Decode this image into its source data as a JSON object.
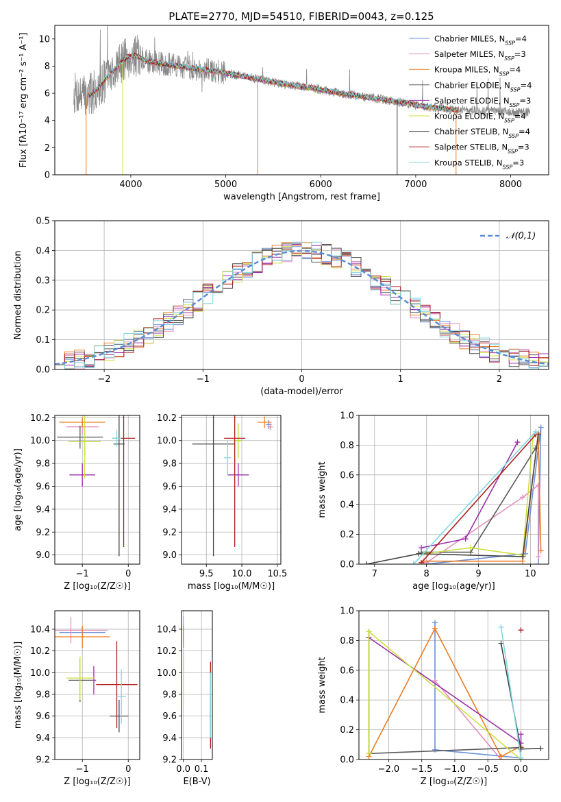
{
  "figure": {
    "title": "PLATE=2770, MJD=54510, FIBERID=0043, z=0.125"
  },
  "series_colors": [
    "#6a8fd8",
    "#e38fc0",
    "#ea7d22",
    "#595959",
    "#9a2fa8",
    "#cde040",
    "#454545",
    "#b01c1c",
    "#82d6df"
  ],
  "chart_data": [
    {
      "id": "spectrum",
      "type": "line",
      "xlabel": "wavelength [Angstrom, rest frame]",
      "ylabel": "Flux [fλ10⁻¹⁷ erg cm⁻² s⁻¹ A⁻¹]",
      "xlim": [
        3200,
        8400
      ],
      "ylim": [
        0,
        11
      ],
      "xticks": [
        4000,
        5000,
        6000,
        7000,
        8000
      ],
      "yticks": [
        0,
        2,
        4,
        6,
        8,
        10
      ],
      "grid": false,
      "legend_position": "top-right",
      "legend": [
        "Chabrier MILES, N_SSP=4",
        "Salpeter MILES, N_SSP=3",
        "Kroupa MILES, N_SSP=4",
        "Chabrier ELODIE, N_SSP=4",
        "Salpeter ELODIE, N_SSP=3",
        "Kroupa ELODIE, N_SSP=4",
        "Chabrier STELIB, N_SSP=4",
        "Salpeter STELIB, N_SSP=3",
        "Kroupa STELIB, N_SSP=3"
      ],
      "continuum": {
        "wavelength": [
          3400,
          3550,
          3650,
          3750,
          3850,
          3950,
          4050,
          4150,
          4300,
          4500,
          4700,
          5000,
          5300,
          5600,
          5900,
          6200,
          6500,
          6800,
          7100,
          7400,
          7700,
          8000,
          8200
        ],
        "flux": [
          6.0,
          5.8,
          6.3,
          7.2,
          7.9,
          8.6,
          8.8,
          8.4,
          8.2,
          8.0,
          7.8,
          7.5,
          7.1,
          6.7,
          6.4,
          6.0,
          5.7,
          5.4,
          5.0,
          4.8,
          4.7,
          4.6,
          4.6
        ]
      },
      "model_wavelength_range": [
        3550,
        7450
      ]
    },
    {
      "id": "residuals",
      "type": "histogram",
      "xlabel": "(data-model)/error",
      "ylabel": "Normed distribution",
      "xlim": [
        -2.5,
        2.5
      ],
      "ylim": [
        0,
        0.5
      ],
      "xticks": [
        -2,
        -1,
        0,
        1,
        2
      ],
      "yticks": [
        0.0,
        0.1,
        0.2,
        0.3,
        0.4,
        0.5
      ],
      "grid": true,
      "legend_position": "top-right",
      "legend": [
        "𝒩(0,1)"
      ],
      "bin_width": 0.1,
      "bin_start": -2.5
    },
    {
      "id": "age-Z",
      "type": "scatter",
      "xlabel": "Z [log₁₀(Z/Z☉)]",
      "ylabel": "age  [log₁₀(age/yr)]",
      "xlim": [
        -1.6,
        0.25
      ],
      "ylim": [
        8.92,
        10.22
      ],
      "xticks": [
        -1,
        0
      ],
      "yticks": [
        9.0,
        9.2,
        9.4,
        9.6,
        9.8,
        10.0,
        10.2
      ],
      "grid": true,
      "points": [
        {
          "x": -0.95,
          "y": 9.99,
          "xerr": 0.35,
          "yerr": 0.12,
          "color": "#6a8fd8"
        },
        {
          "x": -1.0,
          "y": 10.12,
          "xerr": 0.35,
          "yerr": 0.07,
          "color": "#e38fc0"
        },
        {
          "x": -1.0,
          "y": 10.16,
          "xerr": 0.5,
          "yerr": 0.04,
          "color": "#ea7d22"
        },
        {
          "x": -1.05,
          "y": 10.03,
          "xerr": 0.5,
          "yerr": 0.1,
          "color": "#595959"
        },
        {
          "x": -1.0,
          "y": 9.7,
          "xerr": 0.28,
          "yerr": 0.1,
          "color": "#9a2fa8"
        },
        {
          "x": -0.95,
          "y": 9.99,
          "xerr": 0.35,
          "yerr": 0.32,
          "color": "#cde040"
        },
        {
          "x": -0.2,
          "y": 9.97,
          "xerr": 0.12,
          "yerr": 0.98,
          "color": "#454545"
        },
        {
          "x": -0.1,
          "y": 10.02,
          "xerr": 0.25,
          "yerr": 0.95,
          "color": "#b01c1c"
        },
        {
          "x": -0.25,
          "y": 10.02,
          "xerr": 0.1,
          "yerr": 0.07,
          "color": "#82d6df"
        }
      ]
    },
    {
      "id": "age-mass",
      "type": "scatter",
      "xlabel": "mass [log₁₀(M/M☉)]",
      "ylabel": "",
      "xlim": [
        9.15,
        10.55
      ],
      "ylim": [
        8.92,
        10.22
      ],
      "xticks": [
        9.5,
        10.0,
        10.5
      ],
      "yticks": [
        9.0,
        9.2,
        9.4,
        9.6,
        9.8,
        10.0,
        10.2
      ],
      "grid": true,
      "points": [
        {
          "x": 10.38,
          "y": 10.14,
          "xerr": 0.04,
          "yerr": 0.04,
          "color": "#6a8fd8"
        },
        {
          "x": 10.4,
          "y": 10.12,
          "xerr": 0.04,
          "yerr": 0.03,
          "color": "#e38fc0"
        },
        {
          "x": 10.32,
          "y": 10.16,
          "xerr": 0.1,
          "yerr": 0.05,
          "color": "#ea7d22"
        },
        {
          "x": 9.95,
          "y": 10.0,
          "xerr": 0.05,
          "yerr": 0.15,
          "color": "#595959"
        },
        {
          "x": 9.95,
          "y": 9.7,
          "xerr": 0.15,
          "yerr": 0.1,
          "color": "#9a2fa8"
        },
        {
          "x": 9.95,
          "y": 10.0,
          "xerr": 0.05,
          "yerr": 0.15,
          "color": "#cde040"
        },
        {
          "x": 9.6,
          "y": 9.97,
          "xerr": 0.3,
          "yerr": 0.98,
          "color": "#454545"
        },
        {
          "x": 9.9,
          "y": 10.02,
          "xerr": 0.15,
          "yerr": 0.95,
          "color": "#b01c1c"
        },
        {
          "x": 9.8,
          "y": 9.85,
          "xerr": 0.05,
          "yerr": 0.15,
          "color": "#82d6df"
        }
      ]
    },
    {
      "id": "weight-age",
      "type": "line",
      "xlabel": "age  [log₁₀(age/yr)]",
      "ylabel": "mass weight",
      "xlim": [
        6.7,
        10.35
      ],
      "ylim": [
        0,
        1.0
      ],
      "xticks": [
        7,
        8,
        9,
        10
      ],
      "yticks": [
        0.0,
        0.2,
        0.4,
        0.6,
        0.8,
        1.0
      ],
      "grid": true,
      "series": [
        {
          "color": "#6a8fd8",
          "x": [
            8.0,
            9.9,
            10.2,
            10.15
          ],
          "y": [
            0.0,
            0.07,
            0.92,
            0.0
          ]
        },
        {
          "color": "#e38fc0",
          "x": [
            8.0,
            9.85,
            10.15,
            10.15
          ],
          "y": [
            0.01,
            0.45,
            0.53,
            0.05
          ]
        },
        {
          "color": "#ea7d22",
          "x": [
            7.95,
            9.85,
            10.15,
            10.2
          ],
          "y": [
            0.02,
            0.02,
            0.88,
            0.09
          ]
        },
        {
          "color": "#595959",
          "x": [
            7.9,
            8.85,
            10.1
          ],
          "y": [
            0.08,
            0.08,
            0.78
          ]
        },
        {
          "color": "#9a2fa8",
          "x": [
            7.9,
            8.75,
            9.75
          ],
          "y": [
            0.11,
            0.17,
            0.82
          ]
        },
        {
          "color": "#cde040",
          "x": [
            7.95,
            8.85,
            9.85,
            10.05
          ],
          "y": [
            0.07,
            0.11,
            0.06,
            0.86
          ]
        },
        {
          "color": "#454545",
          "x": [
            6.85,
            7.85,
            9.85,
            10.15
          ],
          "y": [
            0.0,
            0.07,
            0.05,
            0.87
          ]
        },
        {
          "color": "#b01c1c",
          "x": [
            7.9,
            10.1
          ],
          "y": [
            0.01,
            0.87
          ]
        },
        {
          "color": "#82d6df",
          "x": [
            7.75,
            10.1
          ],
          "y": [
            0.0,
            0.89
          ]
        }
      ]
    },
    {
      "id": "mass-Z",
      "type": "scatter",
      "xlabel": "Z [log₁₀(Z/Z☉)]",
      "ylabel": "mass [log₁₀(M/M☉)]",
      "xlim": [
        -1.6,
        0.25
      ],
      "ylim": [
        9.2,
        10.57
      ],
      "xticks": [
        -1,
        0
      ],
      "yticks": [
        9.2,
        9.4,
        9.6,
        9.8,
        10.0,
        10.2,
        10.4
      ],
      "grid": true,
      "points": [
        {
          "x": -1.0,
          "y": 10.37,
          "xerr": 0.5,
          "yerr": 0.04,
          "color": "#6a8fd8"
        },
        {
          "x": -1.25,
          "y": 10.39,
          "xerr": 0.8,
          "yerr": 0.12,
          "color": "#e38fc0"
        },
        {
          "x": -1.0,
          "y": 10.33,
          "xerr": 0.6,
          "yerr": 0.1,
          "color": "#ea7d22"
        },
        {
          "x": -1.05,
          "y": 9.93,
          "xerr": 0.25,
          "yerr": 0.2,
          "color": "#595959"
        },
        {
          "x": -0.75,
          "y": 9.93,
          "xerr": 0.05,
          "yerr": 0.13,
          "color": "#9a2fa8"
        },
        {
          "x": -1.05,
          "y": 9.95,
          "xerr": 0.3,
          "yerr": 0.2,
          "color": "#cde040"
        },
        {
          "x": -0.2,
          "y": 9.6,
          "xerr": 0.2,
          "yerr": 0.15,
          "color": "#454545"
        },
        {
          "x": -0.25,
          "y": 9.89,
          "xerr": 0.45,
          "yerr": 0.4,
          "color": "#b01c1c"
        },
        {
          "x": -0.15,
          "y": 9.78,
          "xerr": 0.1,
          "yerr": 0.25,
          "color": "#82d6df"
        }
      ]
    },
    {
      "id": "mass-EBV",
      "type": "scatter",
      "xlabel": "E(B-V)",
      "ylabel": "",
      "xlim": [
        -0.01,
        0.16
      ],
      "ylim": [
        9.2,
        10.57
      ],
      "xticks": [
        0.0,
        0.1
      ],
      "yticks": [
        9.2,
        9.4,
        9.6,
        9.8,
        10.0,
        10.2,
        10.4
      ],
      "grid": true,
      "points": [
        {
          "x": 0.0,
          "y": 10.38,
          "xerr": 0.0,
          "yerr": 0.08,
          "color": "#6a8fd8"
        },
        {
          "x": 0.0,
          "y": 10.4,
          "xerr": 0.0,
          "yerr": 0.12,
          "color": "#e38fc0"
        },
        {
          "x": 0.0,
          "y": 10.33,
          "xerr": 0.0,
          "yerr": 0.1,
          "color": "#ea7d22"
        },
        {
          "x": 0.0,
          "y": 10.1,
          "xerr": 0.0,
          "yerr": 0.08,
          "color": "#9a2fa8"
        },
        {
          "x": 0.0,
          "y": 9.95,
          "xerr": 0.0,
          "yerr": 0.25,
          "color": "#cde040"
        },
        {
          "x": 0.15,
          "y": 9.6,
          "xerr": 0.0,
          "yerr": 0.15,
          "color": "#454545"
        },
        {
          "x": 0.15,
          "y": 9.7,
          "xerr": 0.0,
          "yerr": 0.4,
          "color": "#b01c1c"
        },
        {
          "x": 0.15,
          "y": 9.7,
          "xerr": 0.0,
          "yerr": 0.3,
          "color": "#82d6df"
        }
      ]
    },
    {
      "id": "weight-Z",
      "type": "line",
      "xlabel": "Z [log₁₀(Z/Z☉)]",
      "ylabel": "mass weight",
      "xlim": [
        -2.45,
        0.42
      ],
      "ylim": [
        0,
        1.0
      ],
      "xticks": [
        -2.0,
        -1.5,
        -1.0,
        -0.5,
        0.0
      ],
      "yticks": [
        0.0,
        0.2,
        0.4,
        0.6,
        0.8,
        1.0
      ],
      "grid": true,
      "series": [
        {
          "color": "#6a8fd8",
          "x": [
            -1.3,
            -1.3,
            0.0
          ],
          "y": [
            0.92,
            0.065,
            0.01
          ]
        },
        {
          "color": "#e38fc0",
          "x": [
            -1.3,
            -0.3,
            -0.3
          ],
          "y": [
            0.53,
            0.0,
            0.0
          ]
        },
        {
          "color": "#ea7d22",
          "x": [
            -2.3,
            -1.3,
            -0.3,
            0.0
          ],
          "y": [
            0.02,
            0.88,
            0.02,
            0.09
          ]
        },
        {
          "color": "#595959",
          "x": [
            -2.3,
            -2.3,
            0.0
          ],
          "y": [
            0.86,
            0.04,
            0.08
          ]
        },
        {
          "color": "#9a2fa8",
          "x": [
            -2.3,
            0.0,
            0.0
          ],
          "y": [
            0.82,
            0.11,
            0.17
          ]
        },
        {
          "color": "#cde040",
          "x": [
            -2.3,
            -2.3,
            0.0
          ],
          "y": [
            0.04,
            0.86,
            0.0
          ]
        },
        {
          "color": "#454545",
          "x": [
            -0.3,
            0.0,
            0.3
          ],
          "y": [
            0.78,
            0.07,
            0.075
          ]
        },
        {
          "color": "#b01c1c",
          "x": [
            0.0
          ],
          "y": [
            0.87
          ]
        },
        {
          "color": "#82d6df",
          "x": [
            -0.3,
            0.0
          ],
          "y": [
            0.89,
            0.01
          ]
        }
      ]
    }
  ]
}
